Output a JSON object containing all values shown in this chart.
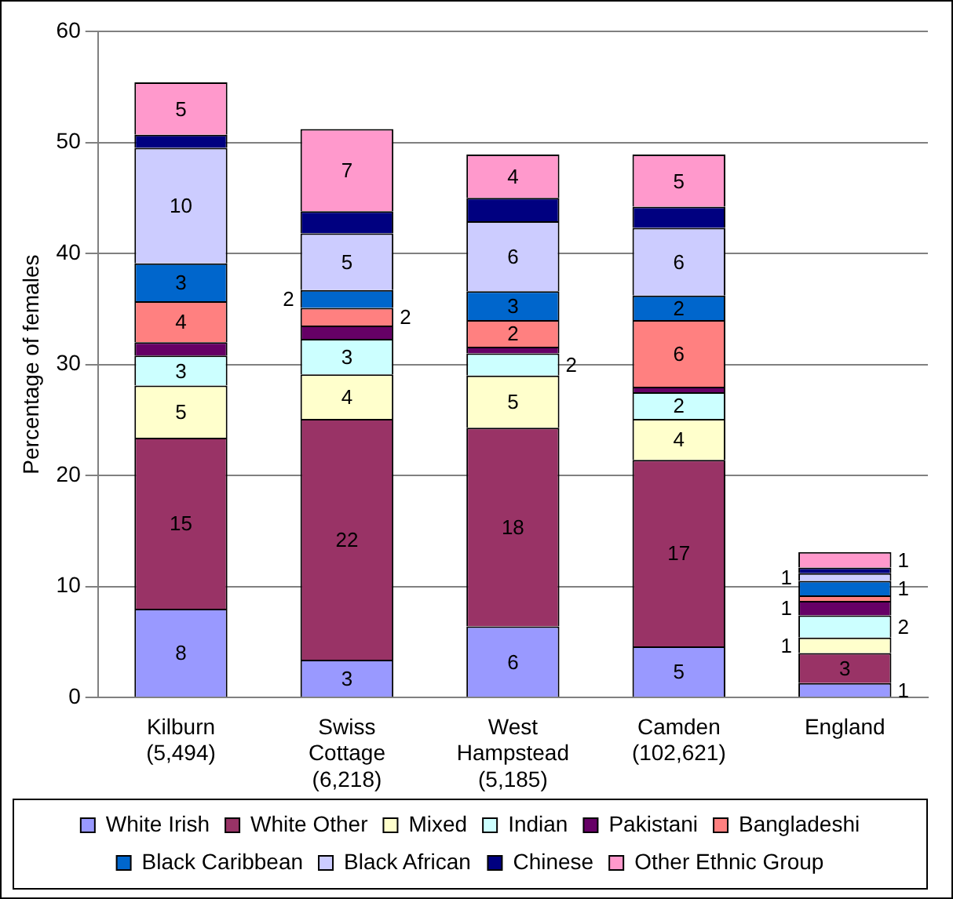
{
  "chart_data": {
    "type": "bar",
    "stacked": true,
    "ylabel": "Percentage of females",
    "categories": [
      "Kilburn\n(5,494)",
      "Swiss\nCottage\n(6,218)",
      "West\nHampstead\n(5,185)",
      "Camden\n(102,621)",
      "England"
    ],
    "ylim": [
      0,
      60
    ],
    "yticks": [
      0,
      10,
      20,
      30,
      40,
      50,
      60
    ],
    "grid": "y",
    "legend": "bottom",
    "series": [
      {
        "name": "White Irish",
        "color": "#9999ff",
        "values": [
          8.0,
          3.4,
          6.4,
          4.6,
          1.3
        ],
        "value_labels": [
          "8",
          "3",
          "6",
          "5",
          "1"
        ]
      },
      {
        "name": "White Other",
        "color": "#993366",
        "values": [
          15.4,
          21.7,
          17.9,
          16.8,
          2.7
        ],
        "value_labels": [
          "15",
          "22",
          "18",
          "17",
          "3"
        ]
      },
      {
        "name": "Mixed",
        "color": "#ffffcc",
        "values": [
          4.7,
          4.0,
          4.7,
          3.7,
          1.4
        ],
        "value_labels": [
          "5",
          "4",
          "5",
          "4",
          "1"
        ]
      },
      {
        "name": "Indian",
        "color": "#ccffff",
        "values": [
          2.7,
          3.2,
          2.0,
          2.4,
          2.0
        ],
        "value_labels": [
          "3",
          "3",
          "2",
          "2",
          "2"
        ]
      },
      {
        "name": "Pakistani",
        "color": "#660066",
        "values": [
          1.2,
          1.2,
          0.6,
          0.5,
          1.3
        ],
        "value_labels": [
          null,
          null,
          null,
          null,
          "1"
        ]
      },
      {
        "name": "Bangladeshi",
        "color": "#ff8080",
        "values": [
          3.7,
          1.6,
          2.4,
          6.0,
          0.5
        ],
        "value_labels": [
          "4",
          "2",
          "2",
          "6",
          null
        ]
      },
      {
        "name": "Black Caribbean",
        "color": "#0066cc",
        "values": [
          3.4,
          1.6,
          2.6,
          2.2,
          1.3
        ],
        "value_labels": [
          "3",
          "2",
          "3",
          "2",
          "1"
        ]
      },
      {
        "name": "Black African",
        "color": "#ccccff",
        "values": [
          10.4,
          5.1,
          6.3,
          6.1,
          0.7
        ],
        "value_labels": [
          "10",
          "5",
          "6",
          "6",
          "1"
        ]
      },
      {
        "name": "Chinese",
        "color": "#000080",
        "values": [
          1.2,
          2.0,
          2.1,
          1.9,
          0.5
        ],
        "value_labels": [
          null,
          null,
          null,
          null,
          null
        ]
      },
      {
        "name": "Other Ethnic Group",
        "color": "#ff99cc",
        "values": [
          4.7,
          7.4,
          3.9,
          4.7,
          1.4
        ],
        "value_labels": [
          "5",
          "7",
          "4",
          "5",
          "1"
        ]
      }
    ]
  }
}
